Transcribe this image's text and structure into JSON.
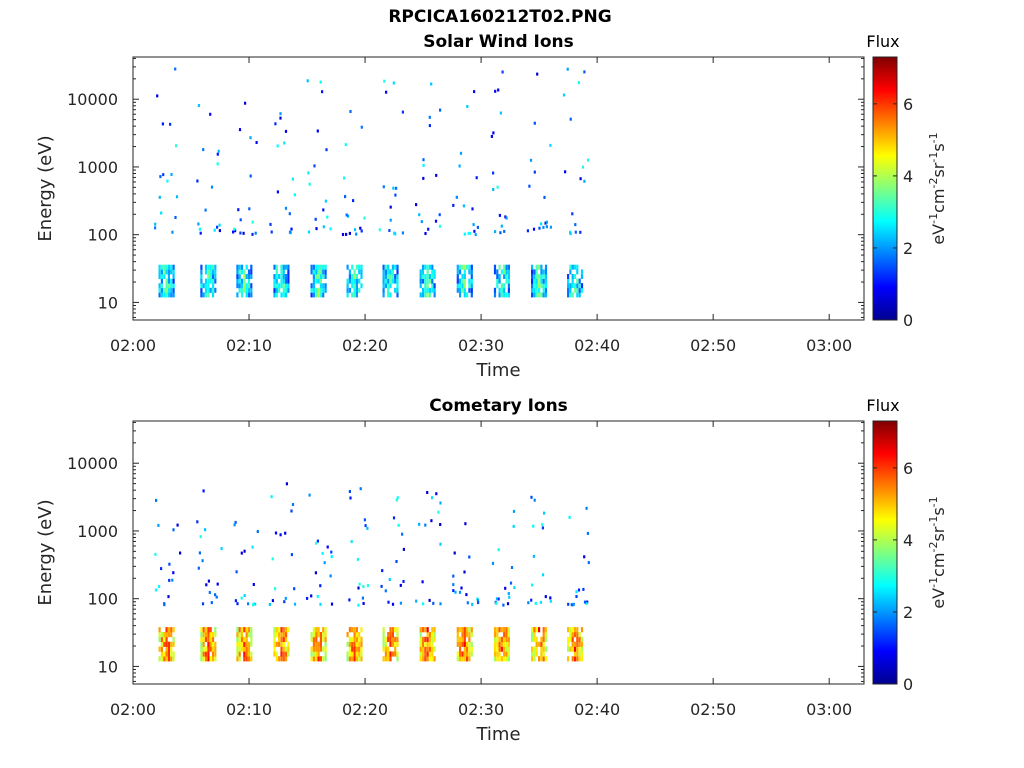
{
  "figure": {
    "title": "RPCICA160212T02.PNG"
  },
  "colormap": {
    "name": "jet",
    "stops": [
      "#00008f",
      "#0000ff",
      "#0080ff",
      "#00ffff",
      "#80ff80",
      "#ffff00",
      "#ff8000",
      "#ff0000",
      "#800000"
    ]
  },
  "chart_data": [
    {
      "type": "heatmap",
      "title": "Solar Wind Ions",
      "xlabel": "Time",
      "ylabel": "Energy (eV)",
      "yscale": "log",
      "xticks": [
        "02:00",
        "02:10",
        "02:20",
        "02:30",
        "02:40",
        "02:50",
        "03:00"
      ],
      "xlim_minutes": [
        0,
        63
      ],
      "yticks": [
        {
          "value": 10,
          "label": "10"
        },
        {
          "value": 100,
          "label": "100"
        },
        {
          "value": 1000,
          "label": "1000"
        },
        {
          "value": 10000,
          "label": "10000"
        }
      ],
      "ylim": [
        5.5,
        42000
      ],
      "colorbar": {
        "title": "Flux",
        "label": "eV-1cm-2sr-1s-1",
        "ticks": [
          "0",
          "2",
          "4",
          "6"
        ],
        "range": [
          0,
          7.3
        ]
      },
      "data_time_range_minutes": [
        1,
        38.3
      ],
      "sweep_start_minutes": [
        2.2,
        5.8,
        8.9,
        12.1,
        15.3,
        18.4,
        21.5,
        24.7,
        27.9,
        31.1,
        34.3,
        37.4
      ],
      "dense_band_energy_ev": [
        12,
        36
      ],
      "band_flux_range": [
        1,
        4
      ],
      "sparse_energy_range_ev": [
        100,
        30000
      ],
      "sparse_flux_range": [
        0.5,
        3
      ]
    },
    {
      "type": "heatmap",
      "title": "Cometary Ions",
      "xlabel": "Time",
      "ylabel": "Energy (eV)",
      "yscale": "log",
      "xticks": [
        "02:00",
        "02:10",
        "02:20",
        "02:30",
        "02:40",
        "02:50",
        "03:00"
      ],
      "xlim_minutes": [
        0,
        63
      ],
      "yticks": [
        {
          "value": 10,
          "label": "10"
        },
        {
          "value": 100,
          "label": "100"
        },
        {
          "value": 1000,
          "label": "1000"
        },
        {
          "value": 10000,
          "label": "10000"
        }
      ],
      "ylim": [
        5.5,
        42000
      ],
      "colorbar": {
        "title": "Flux",
        "label": "eV-1cm-2sr-1s-1",
        "ticks": [
          "0",
          "2",
          "4",
          "6"
        ],
        "range": [
          0,
          7.3
        ]
      },
      "data_time_range_minutes": [
        1,
        38.3
      ],
      "sweep_start_minutes": [
        2.2,
        5.8,
        8.9,
        12.1,
        15.3,
        18.4,
        21.5,
        24.7,
        27.9,
        31.1,
        34.3,
        37.4
      ],
      "dense_band_energy_ev": [
        12,
        38
      ],
      "band_flux_range": [
        3.5,
        6.5
      ],
      "sparse_energy_range_ev": [
        80,
        5000
      ],
      "sparse_flux_range": [
        0.5,
        3
      ]
    }
  ]
}
